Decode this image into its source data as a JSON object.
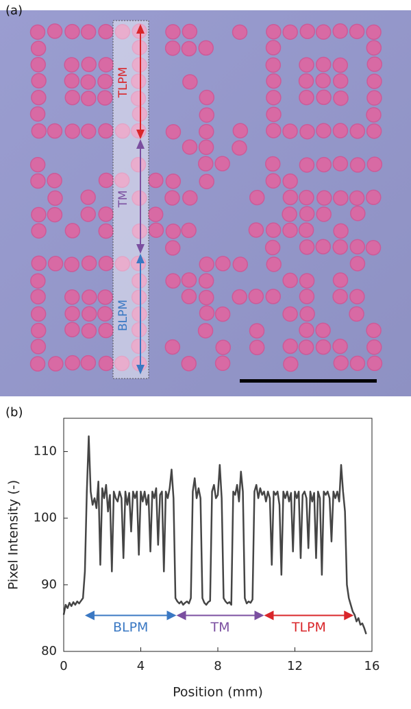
{
  "panel_a": {
    "label": "(a)",
    "annotations": [
      {
        "text": "TLPM",
        "color": "#d9262a"
      },
      {
        "text": "TM",
        "color": "#7b4fa0"
      },
      {
        "text": "BLPM",
        "color": "#3a78c3"
      }
    ]
  },
  "chart_data": {
    "type": "line",
    "panel_label": "(b)",
    "x_label": "Position (mm)",
    "y_label": "Pixel Intensity (-)",
    "xlim": [
      0,
      16
    ],
    "xticks": [
      0,
      4,
      8,
      12,
      16
    ],
    "ylim": [
      80,
      115
    ],
    "yticks": [
      80,
      90,
      100,
      110
    ],
    "color": "#454545",
    "x": [
      0.0,
      0.1,
      0.2,
      0.3,
      0.4,
      0.5,
      0.6,
      0.7,
      0.8,
      0.9,
      1.0,
      1.1,
      1.2,
      1.3,
      1.4,
      1.5,
      1.6,
      1.7,
      1.8,
      1.9,
      2.0,
      2.1,
      2.2,
      2.3,
      2.4,
      2.5,
      2.6,
      2.7,
      2.8,
      2.9,
      3.0,
      3.1,
      3.2,
      3.3,
      3.4,
      3.5,
      3.6,
      3.7,
      3.8,
      3.9,
      4.0,
      4.1,
      4.2,
      4.3,
      4.4,
      4.5,
      4.6,
      4.7,
      4.8,
      4.9,
      5.0,
      5.1,
      5.2,
      5.3,
      5.4,
      5.5,
      5.6,
      5.7,
      5.8,
      5.9,
      6.0,
      6.1,
      6.2,
      6.3,
      6.4,
      6.5,
      6.6,
      6.7,
      6.8,
      6.9,
      7.0,
      7.1,
      7.2,
      7.3,
      7.4,
      7.5,
      7.6,
      7.7,
      7.8,
      7.9,
      8.0,
      8.1,
      8.2,
      8.3,
      8.4,
      8.5,
      8.6,
      8.7,
      8.8,
      8.9,
      9.0,
      9.1,
      9.2,
      9.3,
      9.4,
      9.5,
      9.6,
      9.7,
      9.8,
      9.9,
      10.0,
      10.1,
      10.2,
      10.3,
      10.4,
      10.5,
      10.6,
      10.7,
      10.8,
      10.9,
      11.0,
      11.1,
      11.2,
      11.3,
      11.4,
      11.5,
      11.6,
      11.7,
      11.8,
      11.9,
      12.0,
      12.1,
      12.2,
      12.3,
      12.4,
      12.5,
      12.6,
      12.7,
      12.8,
      12.9,
      13.0,
      13.1,
      13.2,
      13.3,
      13.4,
      13.5,
      13.6,
      13.7,
      13.8,
      13.9,
      14.0,
      14.1,
      14.2,
      14.3,
      14.4,
      14.5,
      14.6,
      14.7,
      14.8,
      14.9,
      15.0,
      15.1,
      15.2,
      15.3,
      15.4,
      15.5,
      15.6,
      15.7
    ],
    "values": [
      85.5,
      87,
      86.5,
      87.3,
      86.8,
      87.4,
      87,
      87.5,
      87.2,
      87.6,
      88,
      92,
      104,
      112.3,
      104,
      102,
      103,
      101.5,
      105.5,
      93,
      104.5,
      103,
      105,
      101,
      103.5,
      92,
      104,
      103,
      102.5,
      104,
      103,
      94,
      104,
      102,
      103.8,
      98,
      104,
      103,
      104,
      94.5,
      104,
      102.5,
      104,
      102,
      103.5,
      95,
      104,
      103,
      104.5,
      96,
      103.5,
      104,
      92,
      104,
      103,
      104.5,
      107.3,
      103,
      88,
      87.5,
      87.2,
      87.5,
      87,
      87.3,
      87.5,
      87.2,
      88,
      104,
      106,
      103,
      104.5,
      103,
      88,
      87.3,
      87,
      87.4,
      87.6,
      104,
      105,
      103,
      103.5,
      108,
      103,
      88,
      87.5,
      87.2,
      87.4,
      87,
      104,
      103.5,
      105,
      102.5,
      107,
      104,
      88,
      87.2,
      87.5,
      87.3,
      87.8,
      104,
      105,
      103,
      104.5,
      103.5,
      104,
      102.5,
      104,
      103,
      93,
      104,
      103.5,
      104,
      102,
      91.5,
      104,
      103,
      104,
      102.5,
      103.8,
      95,
      104,
      103,
      104,
      94,
      103.5,
      104,
      103,
      95.5,
      104,
      102.5,
      103.8,
      94,
      104,
      103,
      91.5,
      104,
      103.5,
      104,
      103,
      96.5,
      104,
      103,
      104,
      102.5,
      108,
      104,
      101,
      90,
      88,
      87,
      86,
      85.5,
      84.5,
      85,
      84,
      84.2,
      83.5,
      82.6
    ],
    "annotations": [
      {
        "text": "BLPM",
        "x": [
          1.1,
          5.85
        ],
        "y": 85.4,
        "color": "#3a78c3"
      },
      {
        "text": "TM",
        "x": [
          5.85,
          10.4
        ],
        "y": 85.4,
        "color": "#7b4fa0"
      },
      {
        "text": "TLPM",
        "x": [
          10.4,
          15.05
        ],
        "y": 85.4,
        "color": "#d9262a"
      }
    ]
  }
}
